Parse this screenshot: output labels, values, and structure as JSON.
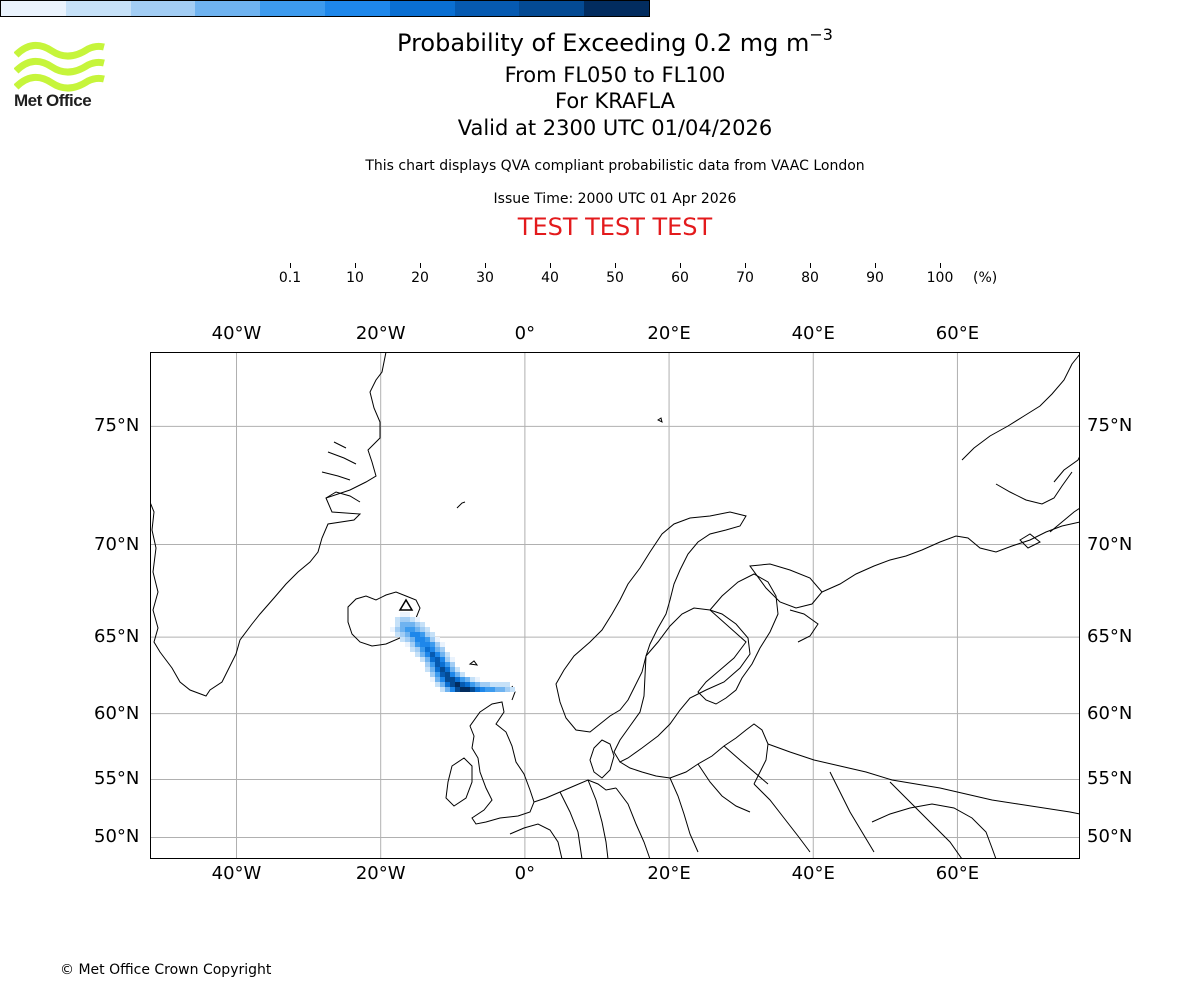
{
  "logo": {
    "name": "Met Office",
    "icon": "met-office-wave-logo-icon",
    "color": "#c6f53b"
  },
  "titles": {
    "main": "Probability of Exceeding 0.2 mg m",
    "main_superscript": "−3",
    "level": "From FL050 to FL100",
    "volcano": "For KRAFLA",
    "valid": "Valid at 2300 UTC 01/04/2026",
    "subtitle": "This chart displays QVA compliant probabilistic data from VAAC London",
    "issue_time": "Issue Time: 2000 UTC 01 Apr 2026",
    "test_banner": "TEST TEST TEST",
    "test_banner_color": "#e31a1c"
  },
  "colorbar": {
    "labels": [
      "0.1",
      "10",
      "20",
      "30",
      "40",
      "50",
      "60",
      "70",
      "80",
      "90",
      "100"
    ],
    "unit": "(%)",
    "colors": [
      "#eaf3fd",
      "#c6e1f8",
      "#a2cdf4",
      "#6fb3f0",
      "#3d9bee",
      "#1e87ea",
      "#0a6fd2",
      "#065ab1",
      "#044a93",
      "#022c5f"
    ]
  },
  "map": {
    "lon_range": [
      -52,
      77
    ],
    "lat_range": [
      48,
      77.5
    ],
    "longitude_labels": [
      "40°W",
      "20°W",
      "0°",
      "20°E",
      "40°E",
      "60°E"
    ],
    "latitude_labels": [
      "75°N",
      "70°N",
      "65°N",
      "60°N",
      "55°N",
      "50°N"
    ],
    "volcano_marker": "volcano-triangle-icon"
  },
  "copyright": "© Met Office Crown Copyright"
}
